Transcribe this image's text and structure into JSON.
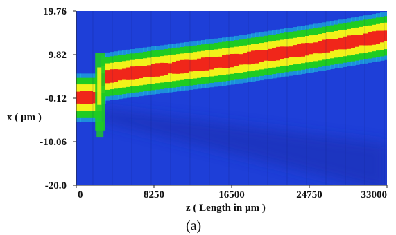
{
  "chart_data": {
    "type": "heatmap",
    "title": "",
    "xlabel": "z  ( Length in µm )",
    "ylabel": "x ( µm )",
    "caption": "(a)",
    "xlim": [
      0,
      33000
    ],
    "ylim": [
      -20.0,
      19.76
    ],
    "x_ticks": [
      "0",
      "8250",
      "16500",
      "24750",
      "33000"
    ],
    "x_tick_values": [
      0,
      8250,
      16500,
      24750,
      33000
    ],
    "y_ticks": [
      "19.76",
      "9.82",
      "-0.12",
      "-10.06",
      "-20.0"
    ],
    "y_tick_values": [
      19.76,
      9.82,
      -0.12,
      -10.06,
      -20.0
    ],
    "colors": {
      "background": "#1e3fd8",
      "weak": "#1ed0e0",
      "low": "#1fcc22",
      "mid": "#f2f21a",
      "high": "#f0261a",
      "shadow": "#1a30b8"
    },
    "beam_path": [
      {
        "z": 0,
        "x": 0.0
      },
      {
        "z": 2300,
        "x": 0.0
      },
      {
        "z": 2700,
        "x": 4.7
      },
      {
        "z": 8250,
        "x": 6.3
      },
      {
        "z": 16500,
        "x": 8.5
      },
      {
        "z": 24750,
        "x": 11.2
      },
      {
        "z": 33000,
        "x": 14.2
      }
    ],
    "beam_width": 5.5,
    "shadow_path": [
      {
        "z": 2800,
        "x": -3.5
      },
      {
        "z": 33000,
        "x": -18.5
      }
    ]
  }
}
